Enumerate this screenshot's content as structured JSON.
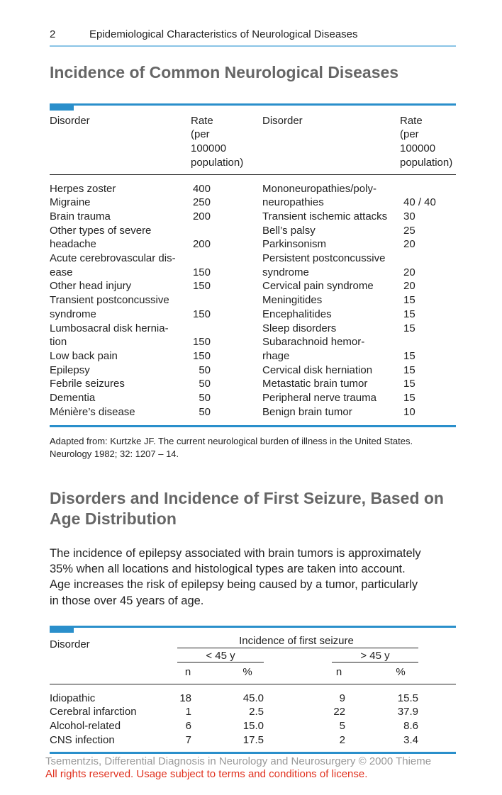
{
  "header": {
    "page_number": "2",
    "running_title": "Epidemiological Characteristics of Neurological Diseases"
  },
  "section1": {
    "title": "Incidence of Common Neurological Diseases",
    "table": {
      "headers": {
        "disorder": "Disorder",
        "rate": [
          "Rate",
          "(per",
          "100000",
          "population)"
        ]
      },
      "left_rows": [
        {
          "disorder": "Herpes zoster",
          "rate": "400"
        },
        {
          "disorder": "Migraine",
          "rate": "250"
        },
        {
          "disorder": "Brain trauma",
          "rate": "200"
        },
        {
          "disorder": "Other types of severe"
        },
        {
          "disorder": "headache",
          "rate": "200"
        },
        {
          "disorder": "Acute cerebrovascular dis-"
        },
        {
          "disorder": "ease",
          "rate": "150"
        },
        {
          "disorder": "Other head injury",
          "rate": "150"
        },
        {
          "disorder": "Transient postconcussive"
        },
        {
          "disorder": "syndrome",
          "rate": "150"
        },
        {
          "disorder": "Lumbosacral disk hernia-"
        },
        {
          "disorder": "tion",
          "rate": "150"
        },
        {
          "disorder": "Low back pain",
          "rate": "150"
        },
        {
          "disorder": "Epilepsy",
          "rate": "50"
        },
        {
          "disorder": "Febrile seizures",
          "rate": "50"
        },
        {
          "disorder": "Dementia",
          "rate": "50"
        },
        {
          "disorder": "Ménière’s disease",
          "rate": "50"
        }
      ],
      "right_rows": [
        {
          "disorder": "Mononeuropathies/poly-"
        },
        {
          "disorder": "neuropathies",
          "rate": "40 / 40"
        },
        {
          "disorder": "Transient ischemic attacks",
          "rate": "30"
        },
        {
          "disorder": "Bell’s palsy",
          "rate": "25"
        },
        {
          "disorder": "Parkinsonism",
          "rate": "20"
        },
        {
          "disorder": "Persistent postconcussive"
        },
        {
          "disorder": "syndrome",
          "rate": "20"
        },
        {
          "disorder": "Cervical pain syndrome",
          "rate": "20"
        },
        {
          "disorder": "Meningitides",
          "rate": "15"
        },
        {
          "disorder": "Encephalitides",
          "rate": "15"
        },
        {
          "disorder": "Sleep disorders",
          "rate": "15"
        },
        {
          "disorder": "Subarachnoid hemor-"
        },
        {
          "disorder": "rhage",
          "rate": "15"
        },
        {
          "disorder": "Cervical disk herniation",
          "rate": "15"
        },
        {
          "disorder": "Metastatic brain tumor",
          "rate": "15"
        },
        {
          "disorder": "Peripheral nerve trauma",
          "rate": "15"
        },
        {
          "disorder": "Benign brain tumor",
          "rate": "10"
        }
      ]
    },
    "source": [
      "Adapted from: Kurtzke JF. The current neurological burden of illness in the United States.",
      "Neurology 1982; 32: 1207 – 14."
    ]
  },
  "section2": {
    "title": [
      "Disorders and Incidence of First Seizure, Based on",
      "Age Distribution"
    ],
    "paragraph": [
      "The incidence of epilepsy associated with brain tumors is approximately",
      "35% when all locations and histological types are taken into account.",
      "Age increases the risk of epilepsy being caused by a tumor, particularly",
      "in those over 45 years of age."
    ],
    "table": {
      "disorder_header": "Disorder",
      "group_header": "Incidence of first seizure",
      "age_groups": [
        "< 45 y",
        "> 45 y"
      ],
      "subheaders": [
        "n",
        "%",
        "n",
        "%"
      ],
      "rows": [
        [
          "Idiopathic",
          "18",
          "45.0",
          "9",
          "15.5"
        ],
        [
          "Cerebral infarction",
          "1",
          "2.5",
          "22",
          "37.9"
        ],
        [
          "Alcohol-related",
          "6",
          "15.0",
          "5",
          "8.6"
        ],
        [
          "CNS infection",
          "7",
          "17.5",
          "2",
          "3.4"
        ]
      ]
    }
  },
  "footer": {
    "copyright": "Tsementzis, Differential Diagnosis in Neurology and Neurosurgery © 2000 Thieme",
    "rights": "All rights reserved. Usage subject to terms and conditions of license."
  }
}
